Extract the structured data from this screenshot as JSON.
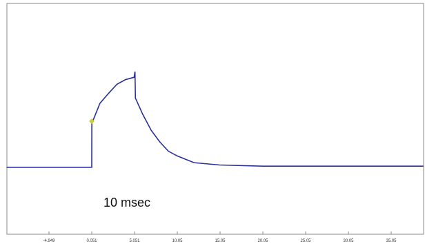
{
  "chart_data": {
    "type": "line",
    "annotation": "10 msec",
    "x": [
      -9.9,
      0.0,
      0.051,
      0.06,
      1,
      2,
      3,
      4,
      5.0,
      5.1,
      5.15,
      6,
      7,
      8,
      9,
      10,
      12,
      15,
      20,
      38.8
    ],
    "series": [
      {
        "color": "#2a2f96",
        "values": [
          29,
          29,
          29,
          48,
          56.7,
          61,
          65,
          67,
          68,
          70.5,
          59,
          52,
          45,
          40,
          36,
          34,
          31,
          30,
          29.5,
          29.5
        ]
      }
    ],
    "marker": {
      "x": 0.051,
      "y": 49,
      "color": "#c8d040"
    },
    "xlim": [
      -9.87,
      38.84
    ],
    "ylim": [
      0,
      100
    ],
    "xticks": [
      -4.949,
      0.051,
      5.051,
      10.05,
      15.05,
      20.05,
      25.05,
      30.05,
      35.05
    ],
    "grid": false
  }
}
